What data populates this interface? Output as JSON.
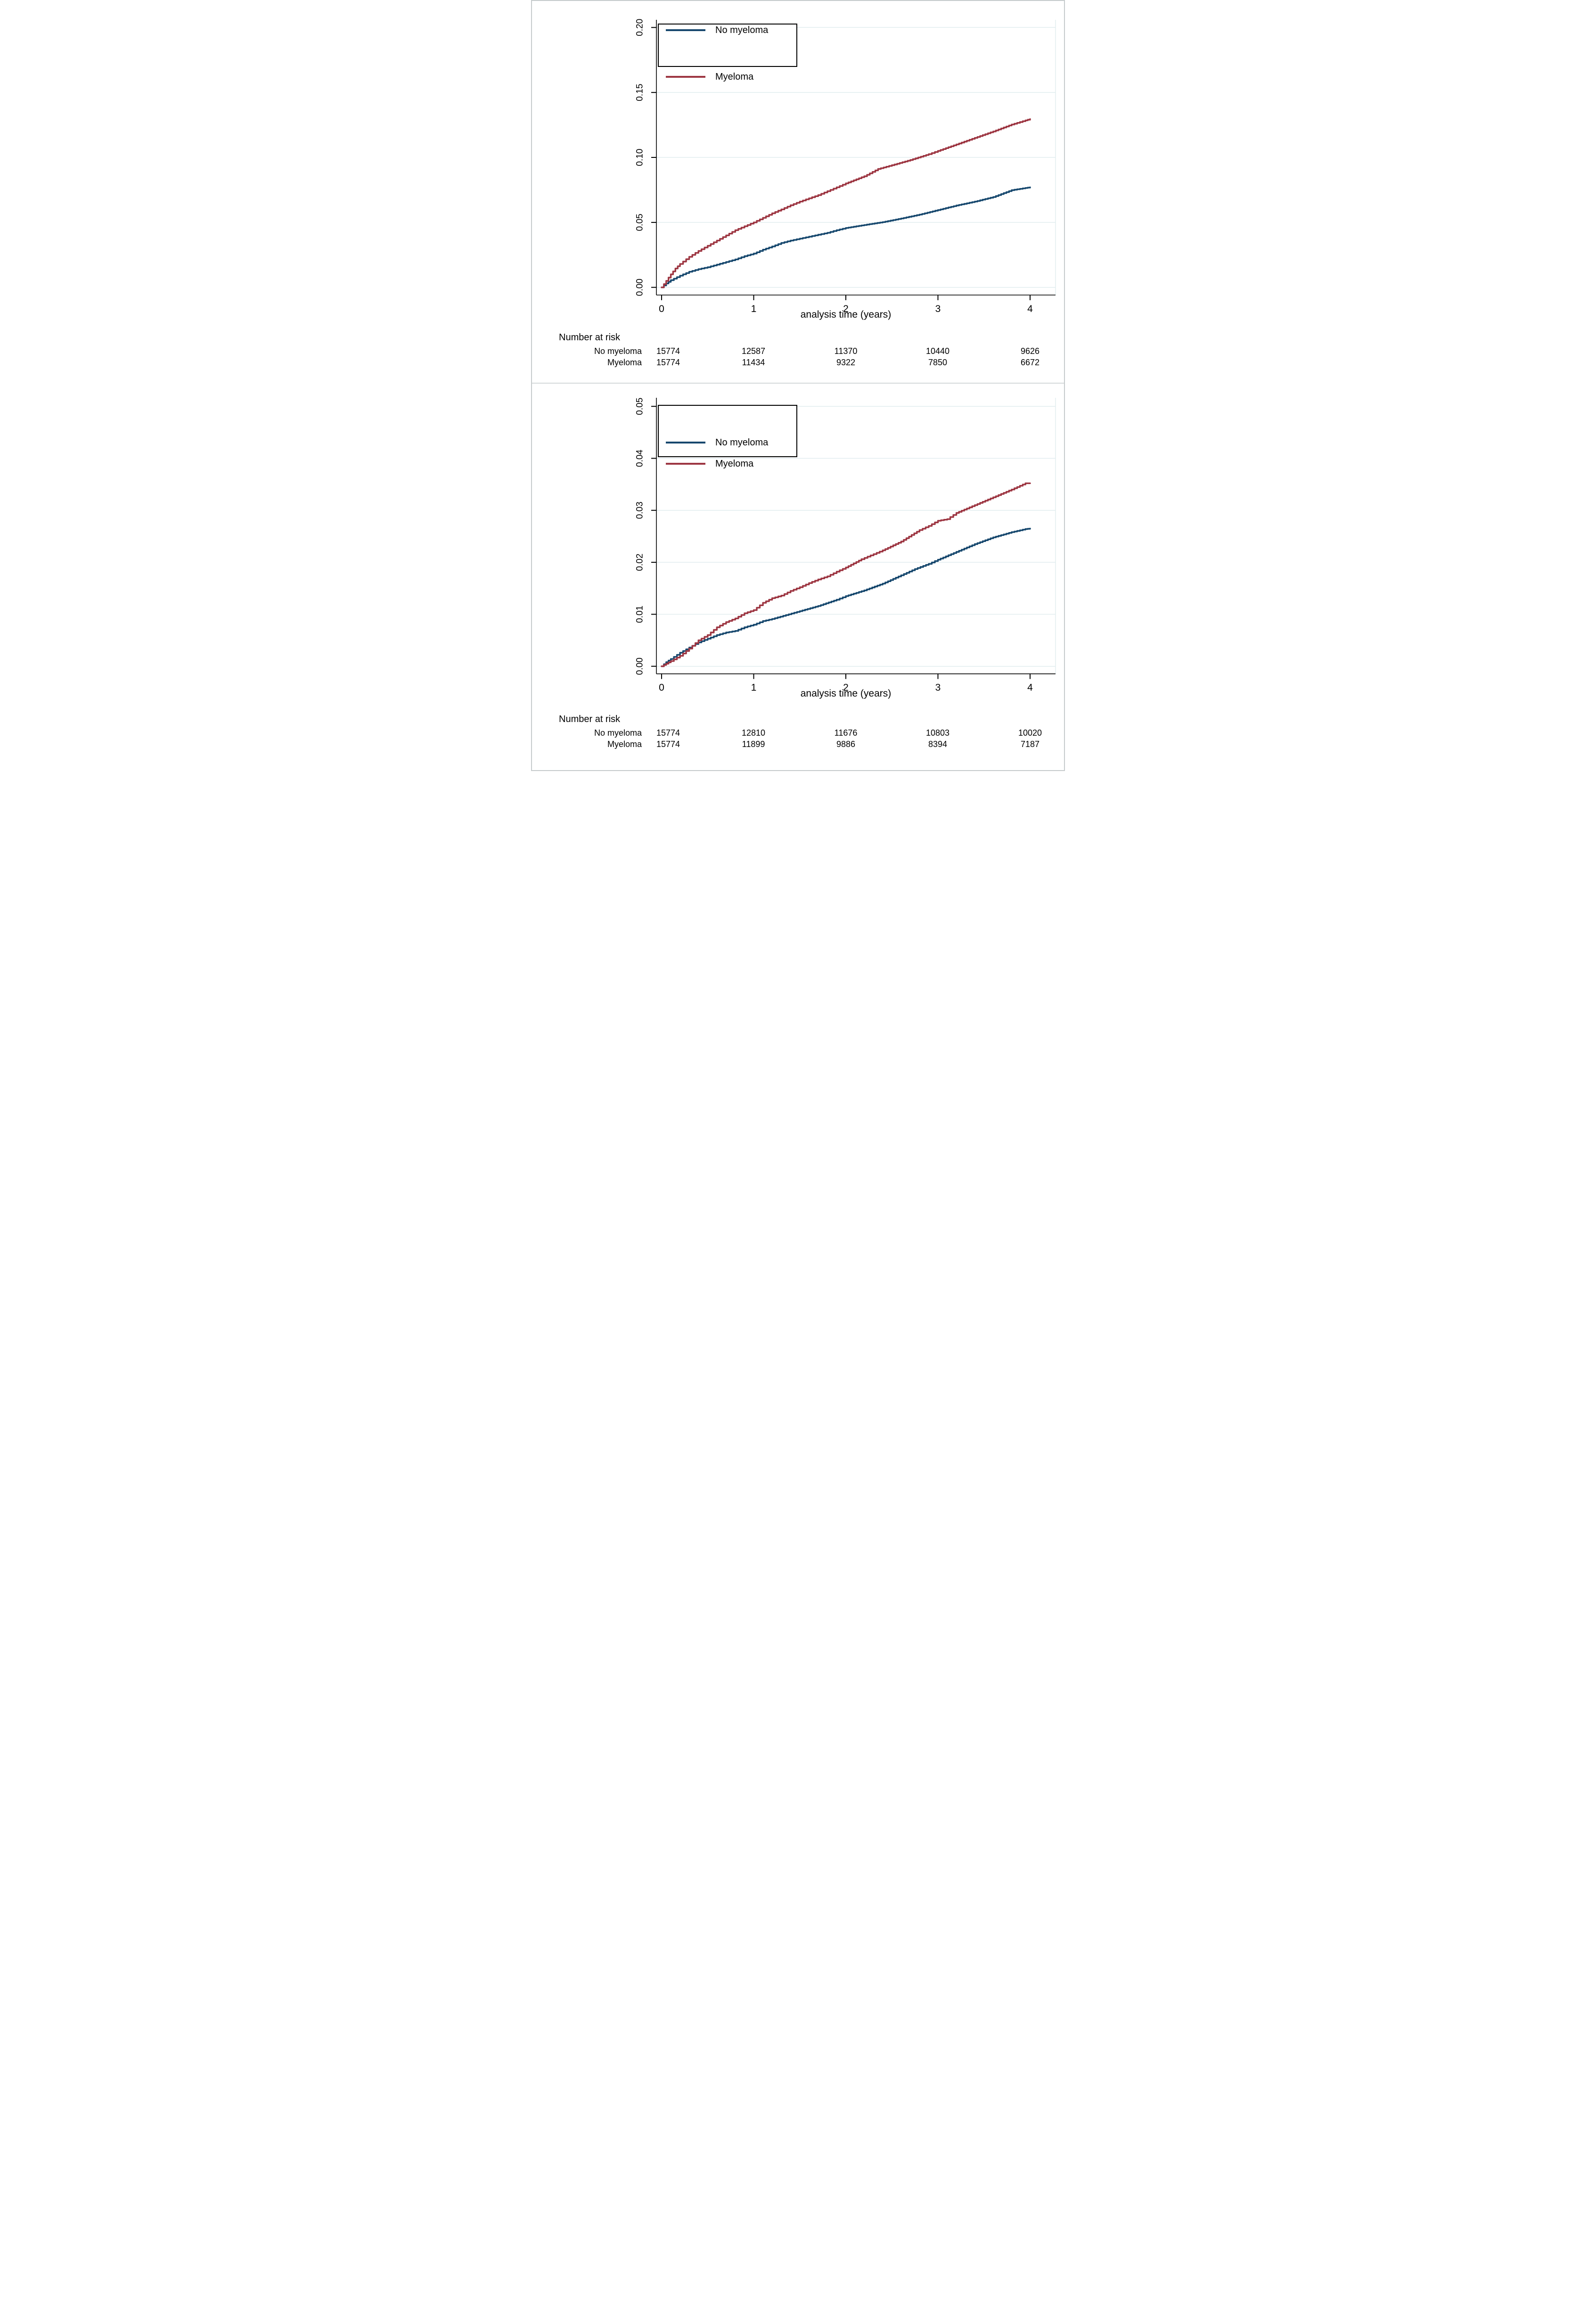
{
  "figure": {
    "description": "Two stacked cumulative incidence plots comparing Myeloma vs No myeloma",
    "colors": {
      "no_myeloma": "#17486E",
      "myeloma": "#9D3642",
      "grid": "#E2EDEF",
      "axis": "#000000",
      "panel_border": "#C6CBCC"
    }
  },
  "chart_data": [
    {
      "type": "line",
      "subtype": "step-cumulative-incidence",
      "xlabel": "analysis time (years)",
      "ylabel": "",
      "xlim": [
        0,
        4
      ],
      "ylim": [
        0,
        0.2
      ],
      "xticks": [
        0,
        1,
        2,
        3,
        4
      ],
      "xtick_labels": [
        "0",
        "1",
        "2",
        "3",
        "4"
      ],
      "yticks": [
        0,
        0.05,
        0.1,
        0.15,
        0.2
      ],
      "ytick_labels": [
        "0.00",
        "0.05",
        "0.10",
        "0.15",
        "0.20"
      ],
      "grid": true,
      "legend_position": "top-left-inside",
      "series": [
        {
          "name": "No myeloma",
          "color": "#17486E",
          "points": [
            [
              0,
              0
            ],
            [
              0.05,
              0.003
            ],
            [
              0.1,
              0.0055
            ],
            [
              0.2,
              0.009
            ],
            [
              0.3,
              0.012
            ],
            [
              0.4,
              0.014
            ],
            [
              0.5,
              0.0155
            ],
            [
              0.6,
              0.0175
            ],
            [
              0.7,
              0.0195
            ],
            [
              0.8,
              0.0215
            ],
            [
              0.9,
              0.024
            ],
            [
              1.0,
              0.026
            ],
            [
              1.1,
              0.029
            ],
            [
              1.2,
              0.0315
            ],
            [
              1.3,
              0.0342
            ],
            [
              1.4,
              0.036
            ],
            [
              1.5,
              0.0375
            ],
            [
              1.6,
              0.039
            ],
            [
              1.7,
              0.0405
            ],
            [
              1.8,
              0.042
            ],
            [
              1.9,
              0.044
            ],
            [
              2.0,
              0.0457
            ],
            [
              2.2,
              0.048
            ],
            [
              2.4,
              0.0502
            ],
            [
              2.6,
              0.053
            ],
            [
              2.8,
              0.056
            ],
            [
              3.0,
              0.0595
            ],
            [
              3.2,
              0.063
            ],
            [
              3.4,
              0.066
            ],
            [
              3.6,
              0.0695
            ],
            [
              3.8,
              0.0748
            ],
            [
              3.95,
              0.0765
            ],
            [
              4.0,
              0.077
            ]
          ]
        },
        {
          "name": "Myeloma",
          "color": "#9D3642",
          "points": [
            [
              0,
              0
            ],
            [
              0.05,
              0.005
            ],
            [
              0.1,
              0.01
            ],
            [
              0.15,
              0.0145
            ],
            [
              0.2,
              0.018
            ],
            [
              0.3,
              0.0235
            ],
            [
              0.4,
              0.028
            ],
            [
              0.5,
              0.032
            ],
            [
              0.6,
              0.036
            ],
            [
              0.7,
              0.04
            ],
            [
              0.8,
              0.044
            ],
            [
              0.9,
              0.047
            ],
            [
              1.0,
              0.05
            ],
            [
              1.1,
              0.0535
            ],
            [
              1.2,
              0.057
            ],
            [
              1.3,
              0.06
            ],
            [
              1.4,
              0.0632
            ],
            [
              1.5,
              0.066
            ],
            [
              1.6,
              0.0685
            ],
            [
              1.7,
              0.071
            ],
            [
              1.8,
              0.074
            ],
            [
              1.9,
              0.077
            ],
            [
              2.0,
              0.08
            ],
            [
              2.2,
              0.0855
            ],
            [
              2.35,
              0.0911
            ],
            [
              2.5,
              0.094
            ],
            [
              2.7,
              0.098
            ],
            [
              2.9,
              0.1025
            ],
            [
              3.0,
              0.105
            ],
            [
              3.2,
              0.11
            ],
            [
              3.4,
              0.115
            ],
            [
              3.6,
              0.12
            ],
            [
              3.8,
              0.1253
            ],
            [
              3.95,
              0.1285
            ],
            [
              4.0,
              0.1295
            ]
          ]
        }
      ],
      "number_at_risk": {
        "title": "Number at risk",
        "times": [
          0,
          1,
          2,
          3,
          4
        ],
        "rows": [
          {
            "label": "No myeloma",
            "values": [
              "15774",
              "12587",
              "11370",
              "10440",
              "9626"
            ]
          },
          {
            "label": "Myeloma",
            "values": [
              "15774",
              "11434",
              "9322",
              "7850",
              "6672"
            ]
          }
        ]
      }
    },
    {
      "type": "line",
      "subtype": "step-cumulative-incidence",
      "xlabel": "analysis time (years)",
      "ylabel": "",
      "xlim": [
        0,
        4
      ],
      "ylim": [
        0,
        0.05
      ],
      "xticks": [
        0,
        1,
        2,
        3,
        4
      ],
      "xtick_labels": [
        "0",
        "1",
        "2",
        "3",
        "4"
      ],
      "yticks": [
        0,
        0.01,
        0.02,
        0.03,
        0.04,
        0.05
      ],
      "ytick_labels": [
        "0.00",
        "0.01",
        "0.02",
        "0.03",
        "0.04",
        "0.05"
      ],
      "grid": true,
      "legend_position": "top-left-inside",
      "series": [
        {
          "name": "No myeloma",
          "color": "#17486E",
          "points": [
            [
              0,
              0
            ],
            [
              0.05,
              0.0008
            ],
            [
              0.1,
              0.0014
            ],
            [
              0.2,
              0.0026
            ],
            [
              0.3,
              0.0036
            ],
            [
              0.4,
              0.0046
            ],
            [
              0.5,
              0.0053
            ],
            [
              0.6,
              0.006
            ],
            [
              0.7,
              0.0065
            ],
            [
              0.8,
              0.0068
            ],
            [
              0.9,
              0.0075
            ],
            [
              1.0,
              0.008
            ],
            [
              1.1,
              0.0087
            ],
            [
              1.2,
              0.0091
            ],
            [
              1.32,
              0.0097
            ],
            [
              1.5,
              0.0106
            ],
            [
              1.7,
              0.0116
            ],
            [
              1.9,
              0.0128
            ],
            [
              2.0,
              0.0135
            ],
            [
              2.2,
              0.0146
            ],
            [
              2.4,
              0.0159
            ],
            [
              2.6,
              0.0175
            ],
            [
              2.75,
              0.0187
            ],
            [
              2.9,
              0.0197
            ],
            [
              3.0,
              0.0205
            ],
            [
              3.2,
              0.022
            ],
            [
              3.4,
              0.0235
            ],
            [
              3.6,
              0.0248
            ],
            [
              3.8,
              0.0258
            ],
            [
              3.95,
              0.0264
            ],
            [
              4.0,
              0.0265
            ]
          ]
        },
        {
          "name": "Myeloma",
          "color": "#9D3642",
          "points": [
            [
              0,
              0
            ],
            [
              0.05,
              0.0005
            ],
            [
              0.1,
              0.001
            ],
            [
              0.2,
              0.002
            ],
            [
              0.3,
              0.0034
            ],
            [
              0.4,
              0.005
            ],
            [
              0.5,
              0.006
            ],
            [
              0.6,
              0.0075
            ],
            [
              0.7,
              0.0085
            ],
            [
              0.8,
              0.0092
            ],
            [
              0.9,
              0.0102
            ],
            [
              1.0,
              0.0108
            ],
            [
              1.1,
              0.0122
            ],
            [
              1.2,
              0.0131
            ],
            [
              1.3,
              0.0136
            ],
            [
              1.4,
              0.0145
            ],
            [
              1.5,
              0.0152
            ],
            [
              1.6,
              0.016
            ],
            [
              1.7,
              0.0167
            ],
            [
              1.8,
              0.0173
            ],
            [
              1.9,
              0.0182
            ],
            [
              2.0,
              0.019
            ],
            [
              2.17,
              0.0206
            ],
            [
              2.4,
              0.0223
            ],
            [
              2.6,
              0.024
            ],
            [
              2.8,
              0.0262
            ],
            [
              2.9,
              0.027
            ],
            [
              3.0,
              0.028
            ],
            [
              3.1,
              0.0283
            ],
            [
              3.2,
              0.0295
            ],
            [
              3.4,
              0.031
            ],
            [
              3.6,
              0.0325
            ],
            [
              3.8,
              0.034
            ],
            [
              3.95,
              0.0352
            ],
            [
              4.0,
              0.0352
            ]
          ]
        }
      ],
      "number_at_risk": {
        "title": "Number at risk",
        "times": [
          0,
          1,
          2,
          3,
          4
        ],
        "rows": [
          {
            "label": "No myeloma",
            "values": [
              "15774",
              "12810",
              "11676",
              "10803",
              "10020"
            ]
          },
          {
            "label": "Myeloma",
            "values": [
              "15774",
              "11899",
              "9886",
              "8394",
              "7187"
            ]
          }
        ]
      }
    }
  ]
}
